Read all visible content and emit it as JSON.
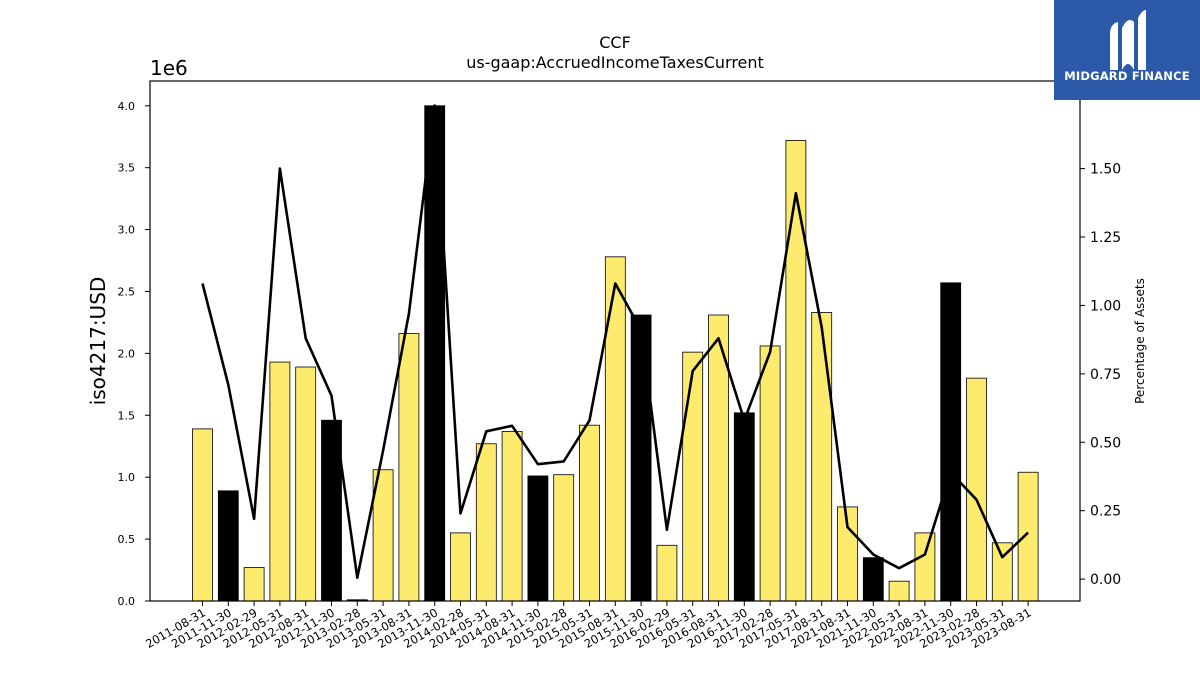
{
  "logo": {
    "text": "MIDGARD FINANCE"
  },
  "chart_data": {
    "type": "bar",
    "title": "CCF",
    "subtitle": "us-gaap:AccruedIncomeTaxesCurrent",
    "ylabel": "iso4217:USD",
    "y_multiplier": "1e6",
    "y2label": "Percentage of Assets",
    "ylim": [
      0,
      4200000
    ],
    "y2lim": [
      -0.08,
      1.82
    ],
    "yticks": [
      0,
      500000,
      1000000,
      1500000,
      2000000,
      2500000,
      3000000,
      3500000,
      4000000
    ],
    "ytick_labels": [
      "0.0",
      "0.5",
      "1.0",
      "1.5",
      "2.0",
      "2.5",
      "3.0",
      "3.5",
      "4.0"
    ],
    "y2ticks": [
      0,
      0.25,
      0.5,
      0.75,
      1.0,
      1.25,
      1.5
    ],
    "y2tick_labels": [
      "0.00",
      "0.25",
      "0.50",
      "0.75",
      "1.00",
      "1.25",
      "1.50"
    ],
    "colors": {
      "bar_primary": "#fdeb6e",
      "bar_highlight": "#000000",
      "line": "#000000"
    },
    "categories": [
      "2011-08-31",
      "2011-11-30",
      "2012-02-29",
      "2012-05-31",
      "2012-08-31",
      "2012-11-30",
      "2013-02-28",
      "2013-05-31",
      "2013-08-31",
      "2013-11-30",
      "2014-02-28",
      "2014-05-31",
      "2014-08-31",
      "2014-11-30",
      "2015-02-28",
      "2015-05-31",
      "2015-08-31",
      "2015-11-30",
      "2016-02-29",
      "2016-05-31",
      "2016-08-31",
      "2016-11-30",
      "2017-02-28",
      "2017-05-31",
      "2017-08-31",
      "2021-08-31",
      "2021-11-30",
      "2022-05-31",
      "2022-08-31",
      "2022-11-30",
      "2023-02-28",
      "2023-05-31",
      "2023-08-31"
    ],
    "series": [
      {
        "type": "bar",
        "values": [
          1390000,
          890000,
          270000,
          1930000,
          1890000,
          1460000,
          10000,
          1060000,
          2160000,
          4000000,
          550000,
          1270000,
          1370000,
          1010000,
          1020000,
          1420000,
          2780000,
          2310000,
          450000,
          2010000,
          2310000,
          1520000,
          2060000,
          3720000,
          2330000,
          760000,
          350000,
          160000,
          550000,
          2570000,
          1800000,
          470000,
          1040000
        ],
        "highlight": [
          false,
          true,
          false,
          false,
          false,
          true,
          true,
          false,
          false,
          true,
          false,
          false,
          false,
          true,
          false,
          false,
          false,
          true,
          false,
          false,
          false,
          true,
          false,
          false,
          false,
          false,
          true,
          false,
          false,
          true,
          false,
          false,
          false
        ]
      },
      {
        "type": "line",
        "axis": "right",
        "values": [
          1.08,
          0.71,
          0.22,
          1.5,
          0.88,
          0.67,
          0.005,
          0.47,
          0.97,
          1.73,
          0.24,
          0.54,
          0.56,
          0.42,
          0.43,
          0.58,
          1.08,
          0.91,
          0.18,
          0.76,
          0.88,
          0.58,
          0.83,
          1.41,
          0.92,
          0.19,
          0.09,
          0.04,
          0.09,
          0.39,
          0.29,
          0.08,
          0.17
        ]
      }
    ]
  }
}
